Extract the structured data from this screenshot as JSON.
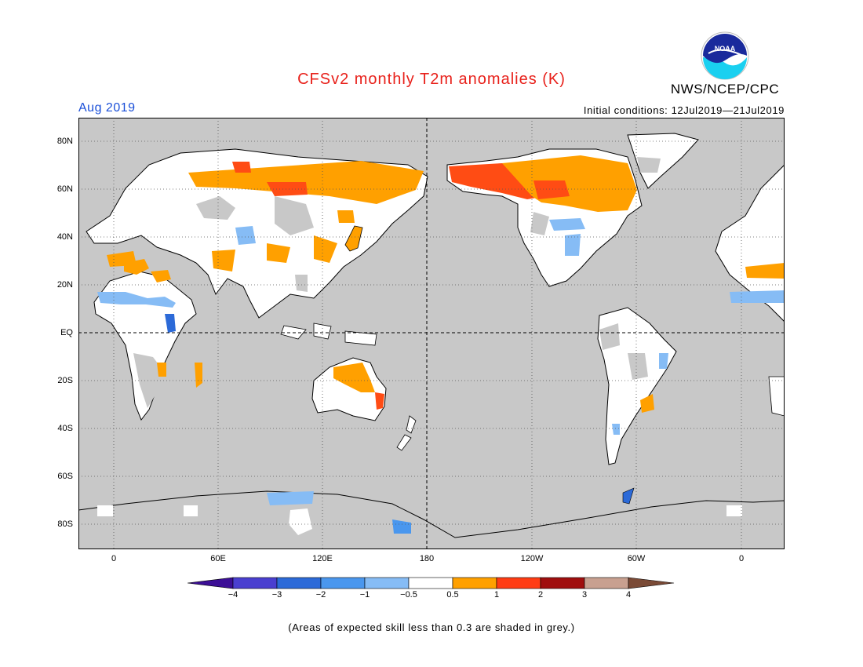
{
  "title": "CFSv2 monthly T2m anomalies (K)",
  "organization": "NWS/NCEP/CPC",
  "logo_text": "NOAA",
  "forecast_period": "Aug 2019",
  "initial_conditions": "Initial conditions: 12Jul2019—21Jul2019",
  "note": "(Areas of expected skill less than 0.3 are shaded in grey.)",
  "lat_labels": [
    "80N",
    "60N",
    "40N",
    "20N",
    "EQ",
    "20S",
    "40S",
    "60S",
    "80S"
  ],
  "lon_labels": [
    "0",
    "60E",
    "120E",
    "180",
    "120W",
    "60W",
    "0"
  ],
  "colorbar": {
    "labels": [
      "−4",
      "−3",
      "−2",
      "−1",
      "−0.5",
      "0.5",
      "1",
      "2",
      "3",
      "4"
    ],
    "colors": [
      "#3c0f96",
      "#4a3fd0",
      "#2c6ad8",
      "#4a97ee",
      "#86bcf5",
      "#ffffff",
      "#ffa000",
      "#ff3c14",
      "#a00e0e",
      "#c8a090",
      "#7a4a36"
    ]
  },
  "map_colors": {
    "ocean_low_skill": "#c8c8c8",
    "near_normal": "#ffffff",
    "warm_0_5_to_1": "#ffa000",
    "warm_1_to_2": "#ff4c14",
    "cool_m1_to_m0_5": "#86bcf5",
    "cool_m2_to_m1": "#4a97ee",
    "cool_m3_to_m2": "#2c6ad8"
  }
}
